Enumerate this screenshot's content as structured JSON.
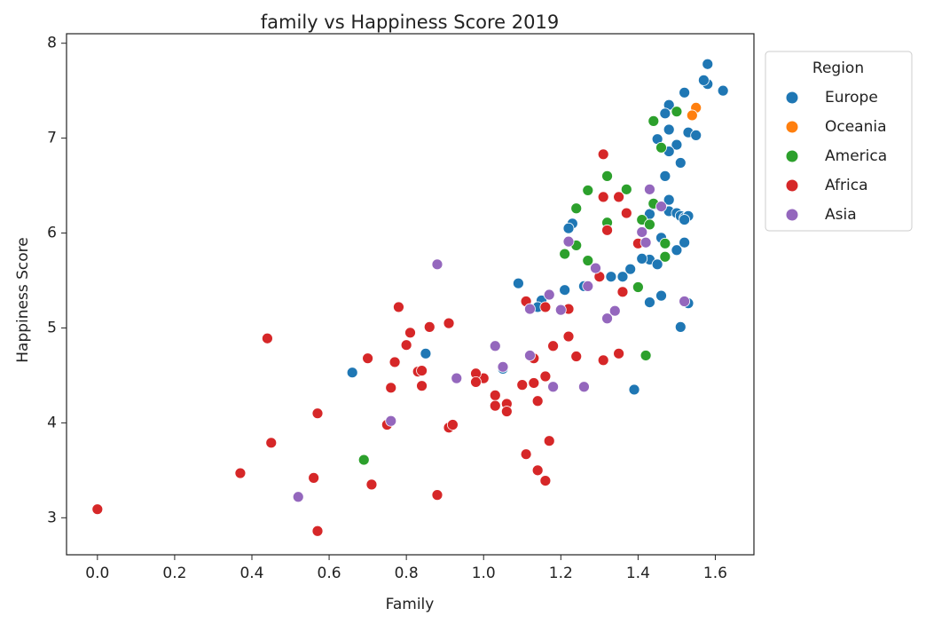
{
  "chart_data": {
    "type": "scatter",
    "title": "family vs Happiness Score 2019",
    "x_label": "Family",
    "y_label": "Happiness Score",
    "legend_title": "Region",
    "legend": "upper right outside",
    "xlim": [
      -0.08,
      1.7
    ],
    "ylim": [
      2.61,
      8.1
    ],
    "xticks": [
      {
        "value": 0,
        "label": "0.0"
      },
      0.2,
      0.4,
      0.6,
      0.8,
      {
        "value": 1,
        "label": "1.0"
      },
      1.2,
      1.4,
      1.6
    ],
    "yticks": [
      3,
      4,
      5,
      6,
      7,
      8
    ],
    "series": [
      {
        "name": "Europe",
        "color": "#1f77b4",
        "x": [
          1.58,
          1.58,
          1.57,
          1.62,
          1.52,
          1.48,
          1.53,
          1.55,
          1.5,
          1.48,
          1.45,
          1.47,
          1.48,
          1.51,
          1.47,
          1.48,
          1.48,
          1.5,
          1.51,
          1.52,
          1.53,
          1.52,
          1.52,
          1.5,
          1.43,
          1.44,
          1.46,
          1.43,
          1.45,
          1.41,
          1.38,
          1.36,
          1.33,
          1.26,
          1.21,
          1.23,
          1.22,
          1.09,
          1.15,
          1.14,
          1.46,
          1.43,
          1.53,
          1.51,
          1.39,
          0.85,
          0.66,
          1.05
        ],
        "values": [
          7.78,
          7.57,
          7.61,
          7.5,
          7.48,
          7.35,
          7.06,
          7.03,
          6.93,
          7.09,
          6.99,
          7.26,
          6.86,
          6.74,
          6.6,
          6.35,
          6.23,
          6.21,
          6.18,
          6.16,
          6.18,
          6.14,
          5.9,
          5.82,
          6.2,
          6.3,
          5.95,
          5.72,
          5.67,
          5.73,
          5.62,
          5.54,
          5.54,
          5.44,
          5.4,
          6.1,
          6.05,
          5.47,
          5.29,
          5.22,
          5.34,
          5.27,
          5.26,
          5.01,
          4.35,
          4.73,
          4.53,
          4.57
        ]
      },
      {
        "name": "Oceania",
        "color": "#ff7f0e",
        "x": [
          1.55,
          1.54
        ],
        "values": [
          7.32,
          7.24
        ]
      },
      {
        "name": "America",
        "color": "#2ca02c",
        "x": [
          1.44,
          1.5,
          1.46,
          1.32,
          1.27,
          1.37,
          1.24,
          1.44,
          1.32,
          1.41,
          1.43,
          1.24,
          1.21,
          1.27,
          1.47,
          1.47,
          1.4,
          1.42,
          0.69
        ],
        "values": [
          7.18,
          7.28,
          6.9,
          6.6,
          6.45,
          6.46,
          6.26,
          6.31,
          6.11,
          6.14,
          6.09,
          5.87,
          5.78,
          5.71,
          5.89,
          5.75,
          5.43,
          4.71,
          3.61
        ]
      },
      {
        "name": "Africa",
        "color": "#d62728",
        "x": [
          1.31,
          1.31,
          1.35,
          1.37,
          1.32,
          1.4,
          1.3,
          1.36,
          1.11,
          1.22,
          1.16,
          0.78,
          0.86,
          0.91,
          0.81,
          0.8,
          1.22,
          1.18,
          0.44,
          0.7,
          0.77,
          0.83,
          0.84,
          1.24,
          1.35,
          1.31,
          1.13,
          1.13,
          1.1,
          1.16,
          1.0,
          0.98,
          0.98,
          0.84,
          0.76,
          1.03,
          1.06,
          1.03,
          1.06,
          1.14,
          0.91,
          0.92,
          0.57,
          0.75,
          0.45,
          1.17,
          1.11,
          1.14,
          1.16,
          0.37,
          0.56,
          0.71,
          0.88,
          0.0,
          0.57
        ],
        "values": [
          6.83,
          6.38,
          6.38,
          6.21,
          6.03,
          5.89,
          5.54,
          5.38,
          5.28,
          5.2,
          5.22,
          5.22,
          5.01,
          5.05,
          4.95,
          4.82,
          4.91,
          4.81,
          4.89,
          4.68,
          4.64,
          4.54,
          4.55,
          4.7,
          4.73,
          4.66,
          4.68,
          4.42,
          4.4,
          4.49,
          4.47,
          4.52,
          4.43,
          4.39,
          4.37,
          4.29,
          4.2,
          4.18,
          4.12,
          4.23,
          3.95,
          3.98,
          4.1,
          3.98,
          3.79,
          3.81,
          3.67,
          3.5,
          3.39,
          3.47,
          3.42,
          3.35,
          3.24,
          3.09,
          2.86
        ]
      },
      {
        "name": "Asia",
        "color": "#9467bd",
        "x": [
          0.88,
          1.43,
          1.46,
          1.41,
          1.42,
          1.22,
          1.29,
          1.27,
          1.17,
          1.12,
          1.2,
          1.34,
          1.32,
          1.52,
          1.03,
          1.05,
          1.12,
          0.93,
          1.18,
          1.26,
          0.76,
          0.52
        ],
        "values": [
          5.67,
          6.46,
          6.28,
          6.01,
          5.9,
          5.91,
          5.63,
          5.44,
          5.35,
          5.2,
          5.19,
          5.18,
          5.1,
          5.28,
          4.81,
          4.59,
          4.71,
          4.47,
          4.38,
          4.38,
          4.02,
          3.22
        ]
      }
    ]
  }
}
